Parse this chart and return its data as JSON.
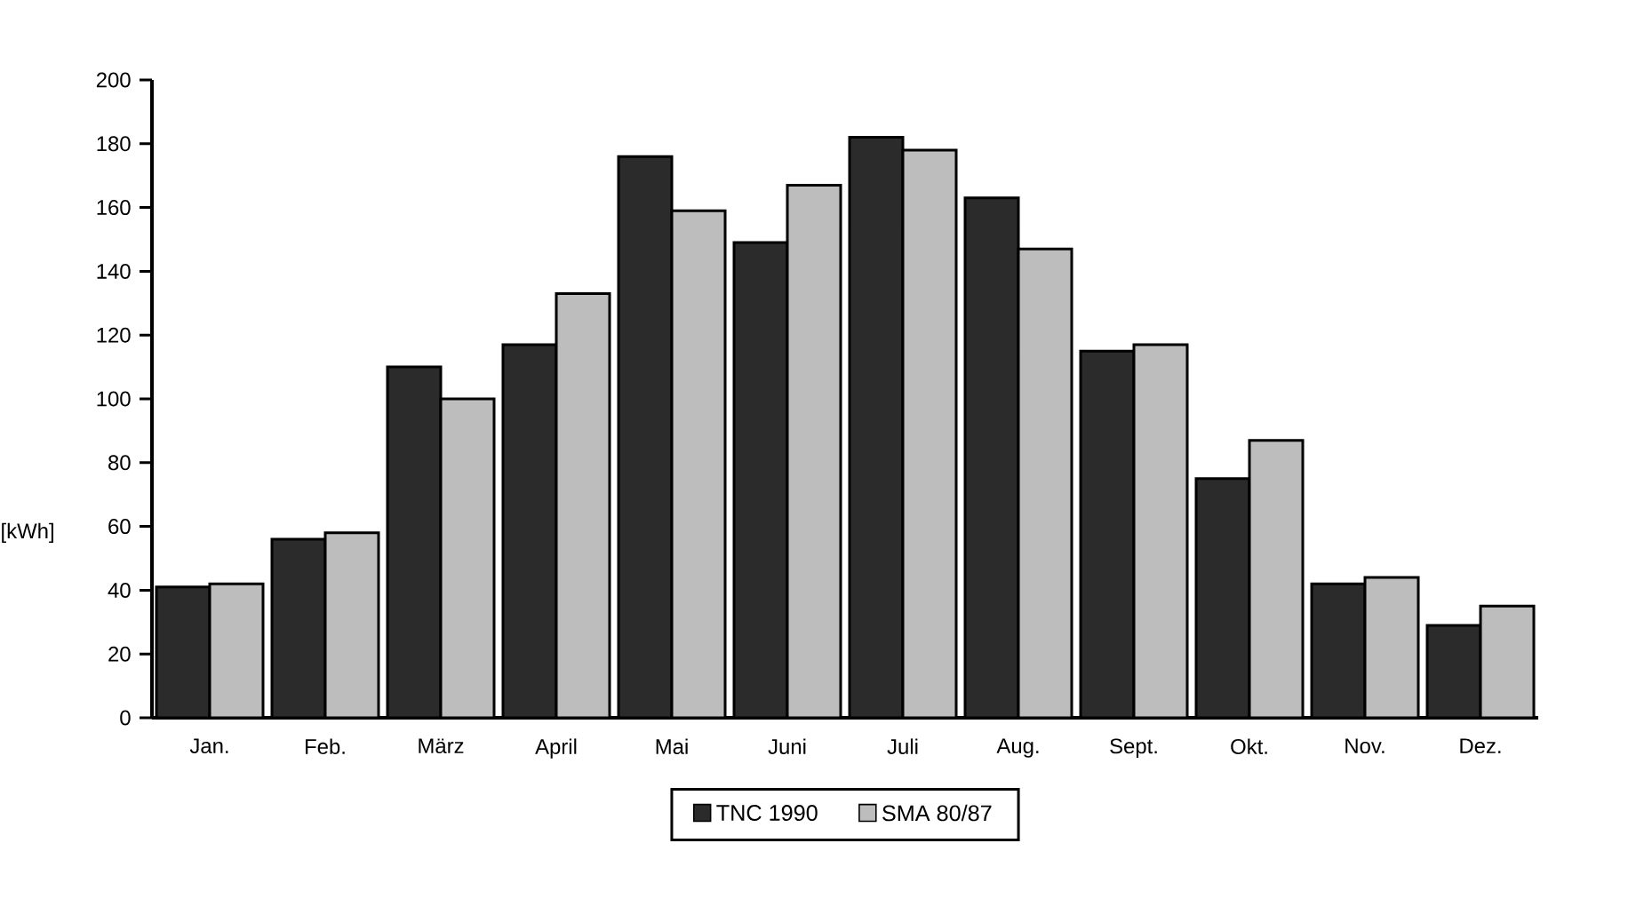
{
  "chart_data": {
    "type": "bar",
    "ylabel": "[kWh]",
    "categories": [
      "Jan.",
      "Feb.",
      "März",
      "April",
      "Mai",
      "Juni",
      "Juli",
      "Aug.",
      "Sept.",
      "Okt.",
      "Nov.",
      "Dez."
    ],
    "series": [
      {
        "name": "TNC 1990",
        "color": "#2b2b2b",
        "values": [
          41,
          56,
          110,
          117,
          176,
          149,
          182,
          163,
          115,
          75,
          42,
          29
        ]
      },
      {
        "name": "SMA 80/87",
        "color": "#bdbdbd",
        "values": [
          42,
          58,
          100,
          133,
          159,
          167,
          178,
          147,
          117,
          87,
          44,
          35
        ]
      }
    ],
    "ylim": [
      0,
      200
    ],
    "yticks": [
      0,
      20,
      40,
      60,
      80,
      100,
      120,
      140,
      160,
      180,
      200
    ],
    "grid": false,
    "legend": "bottom"
  }
}
